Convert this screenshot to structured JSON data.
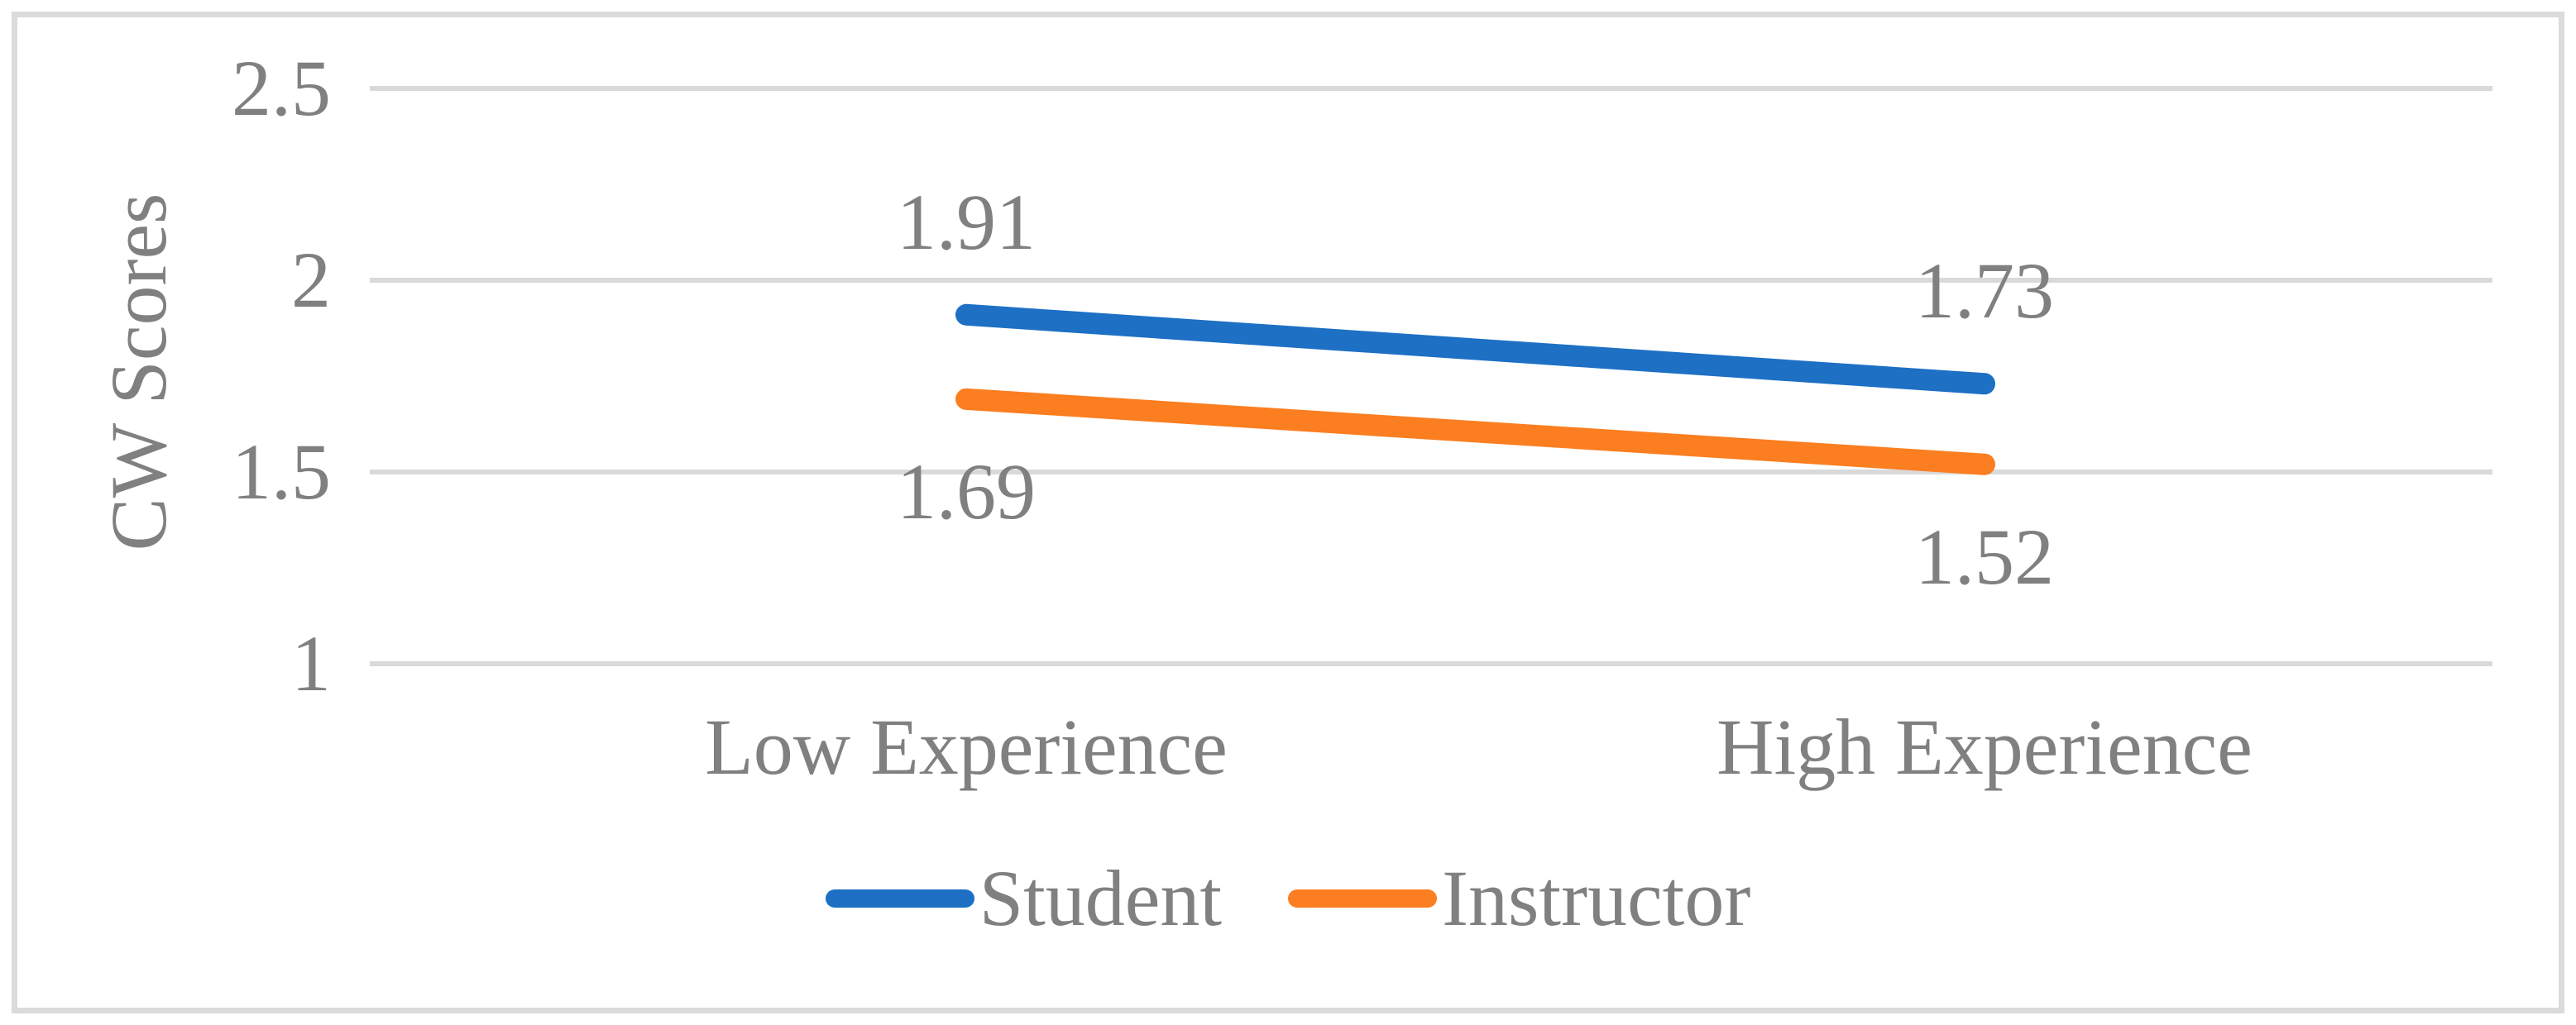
{
  "chart_data": {
    "type": "line",
    "title": "",
    "xlabel": "",
    "ylabel": "CW Scores",
    "categories": [
      "Low Experience",
      "High Experience"
    ],
    "series": [
      {
        "name": "Student",
        "color": "#1d70c4",
        "values": [
          1.91,
          1.73
        ],
        "labels": [
          "1.91",
          "1.73"
        ],
        "label_position": "above"
      },
      {
        "name": "Instructor",
        "color": "#fb7e20",
        "values": [
          1.69,
          1.52
        ],
        "labels": [
          "1.69",
          "1.52"
        ],
        "label_position": "below"
      }
    ],
    "y_tick_labels": [
      "2.5",
      "2",
      "1.5",
      "1"
    ],
    "y_tick_values": [
      2.5,
      2,
      1.5,
      1
    ],
    "ylim": [
      1,
      2.5
    ],
    "grid": "horizontal-only",
    "legend_position": "bottom-center",
    "colors": {
      "text": "#808080",
      "gridline": "#d9d9d9",
      "border": "#dbdbdb",
      "background": "#ffffff"
    }
  }
}
